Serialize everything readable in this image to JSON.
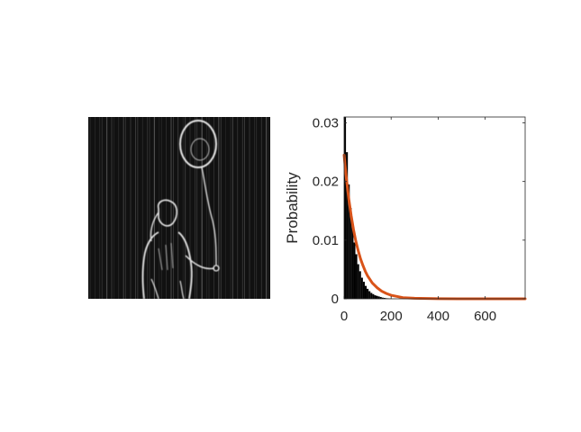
{
  "figure": {
    "left_panel": {
      "image_icon": "edge-filtered-photo-girl-with-balloon"
    },
    "right_panel": {
      "ylabel": "Probability"
    }
  },
  "colors": {
    "background": "#ffffff",
    "image_background": "#111111",
    "histogram": "#000000",
    "fit_line": "#d95319",
    "axes": "#262626"
  },
  "chart_data": {
    "type": "bar",
    "title": "",
    "xlabel": "",
    "ylabel": "Probability",
    "xlim": [
      0,
      770
    ],
    "ylim": [
      0,
      0.031
    ],
    "xticks": [
      0,
      200,
      400,
      600
    ],
    "xtick_labels": [
      "0",
      "200",
      "400",
      "600"
    ],
    "yticks": [
      0,
      0.01,
      0.02,
      0.03
    ],
    "ytick_labels": [
      "0",
      "0.01",
      "0.02",
      "0.03"
    ],
    "grid": false,
    "series": [
      {
        "type": "histogram",
        "bin_width": 8,
        "x": [
          4,
          12,
          20,
          28,
          36,
          44,
          52,
          60,
          68,
          76,
          84,
          92,
          100,
          108,
          116,
          124,
          132,
          140,
          148,
          156,
          164,
          172,
          180,
          188,
          196
        ],
        "values": [
          0.031,
          0.025,
          0.0195,
          0.0155,
          0.0122,
          0.0096,
          0.0076,
          0.0059,
          0.0047,
          0.0036,
          0.0029,
          0.0022,
          0.0017,
          0.0013,
          0.001,
          0.0008,
          0.0006,
          0.0005,
          0.0004,
          0.0003,
          0.0002,
          0.00015,
          0.0001,
          8e-05,
          5e-05
        ]
      },
      {
        "type": "line",
        "x": [
          0,
          10,
          20,
          30,
          40,
          50,
          60,
          70,
          80,
          90,
          100,
          120,
          140,
          160,
          180,
          200,
          250,
          300,
          400,
          500,
          600,
          700,
          770
        ],
        "values": [
          0.0245,
          0.0204,
          0.017,
          0.0142,
          0.0118,
          0.0098,
          0.0082,
          0.0068,
          0.0057,
          0.0047,
          0.0039,
          0.0027,
          0.0019,
          0.0013,
          0.0009,
          0.0006,
          0.0002,
          0.0001,
          2e-05,
          0.0,
          0.0,
          0.0,
          0.0
        ]
      }
    ]
  }
}
